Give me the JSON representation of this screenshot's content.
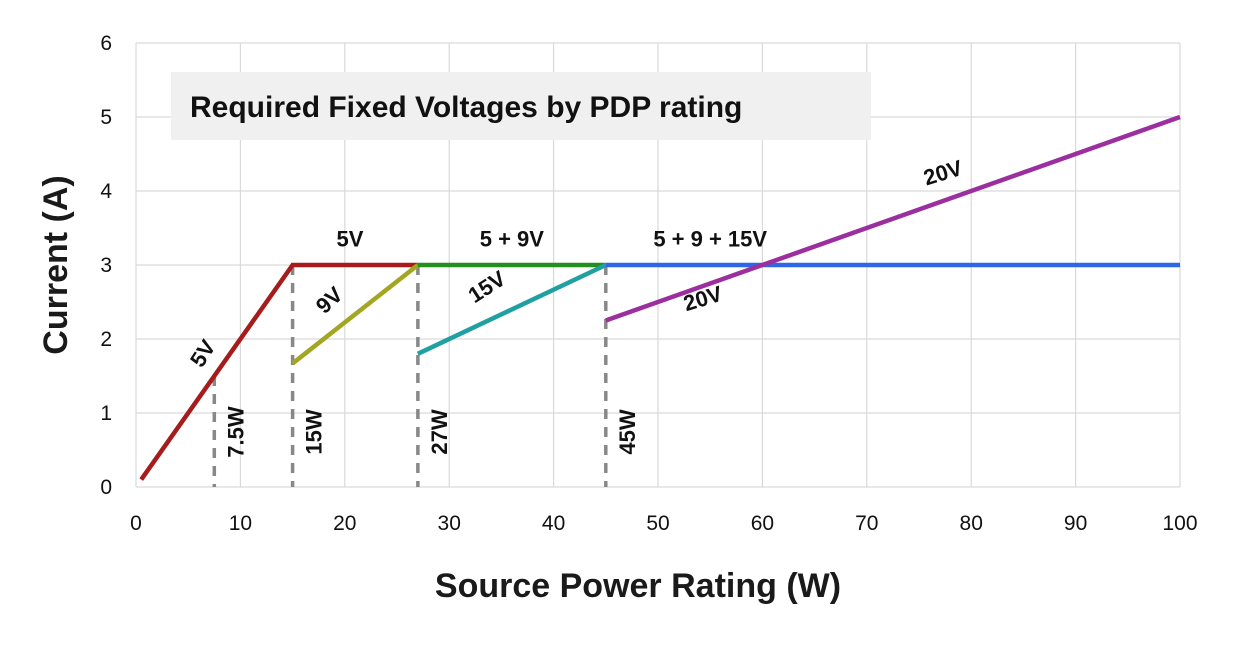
{
  "chart_data": {
    "type": "line",
    "title": "Required Fixed Voltages by PDP rating",
    "xlabel": "Source Power Rating (W)",
    "ylabel": "Current (A)",
    "xlim": [
      0,
      100
    ],
    "ylim": [
      0,
      6
    ],
    "x_ticks": [
      0,
      10,
      20,
      30,
      40,
      50,
      60,
      70,
      80,
      90,
      100
    ],
    "y_ticks": [
      0,
      1,
      2,
      3,
      4,
      5,
      6
    ],
    "grid": true,
    "series": [
      {
        "color": "#a61c1c",
        "points": [
          [
            0.5,
            0.1
          ],
          [
            15,
            3
          ],
          [
            27,
            3
          ]
        ]
      },
      {
        "color": "#a3a621",
        "points": [
          [
            15,
            1.67
          ],
          [
            27,
            3
          ]
        ]
      },
      {
        "color": "#238f1f",
        "points": [
          [
            27,
            3
          ],
          [
            45,
            3
          ]
        ]
      },
      {
        "color": "#20a0a0",
        "points": [
          [
            27,
            1.8
          ],
          [
            45,
            3
          ]
        ]
      },
      {
        "color": "#2f66e8",
        "points": [
          [
            45,
            3
          ],
          [
            100,
            3
          ]
        ]
      },
      {
        "color": "#9c2fa0",
        "points": [
          [
            45,
            2.25
          ],
          [
            100,
            5
          ]
        ]
      }
    ],
    "segment_labels": [
      {
        "text": "5V",
        "x": 7,
        "y": 1.75,
        "angle": -57
      },
      {
        "text": "5V",
        "x": 20.5,
        "y": 3.25,
        "angle": 0
      },
      {
        "text": "9V",
        "x": 19,
        "y": 2.45,
        "angle": -43
      },
      {
        "text": "5 + 9V",
        "x": 36,
        "y": 3.25,
        "angle": 0
      },
      {
        "text": "15V",
        "x": 34,
        "y": 2.62,
        "angle": -33
      },
      {
        "text": "5 + 9 + 15V",
        "x": 55,
        "y": 3.25,
        "angle": 0
      },
      {
        "text": "20V",
        "x": 54.5,
        "y": 2.45,
        "angle": -17
      },
      {
        "text": "20V",
        "x": 77.5,
        "y": 4.15,
        "angle": -17
      }
    ],
    "power_markers": [
      {
        "x": 7.5,
        "y_top": 1.5,
        "label": "7.5W"
      },
      {
        "x": 15,
        "y_top": 3,
        "label": "15W"
      },
      {
        "x": 27,
        "y_top": 3,
        "label": "27W"
      },
      {
        "x": 45,
        "y_top": 3,
        "label": "45W"
      }
    ]
  }
}
